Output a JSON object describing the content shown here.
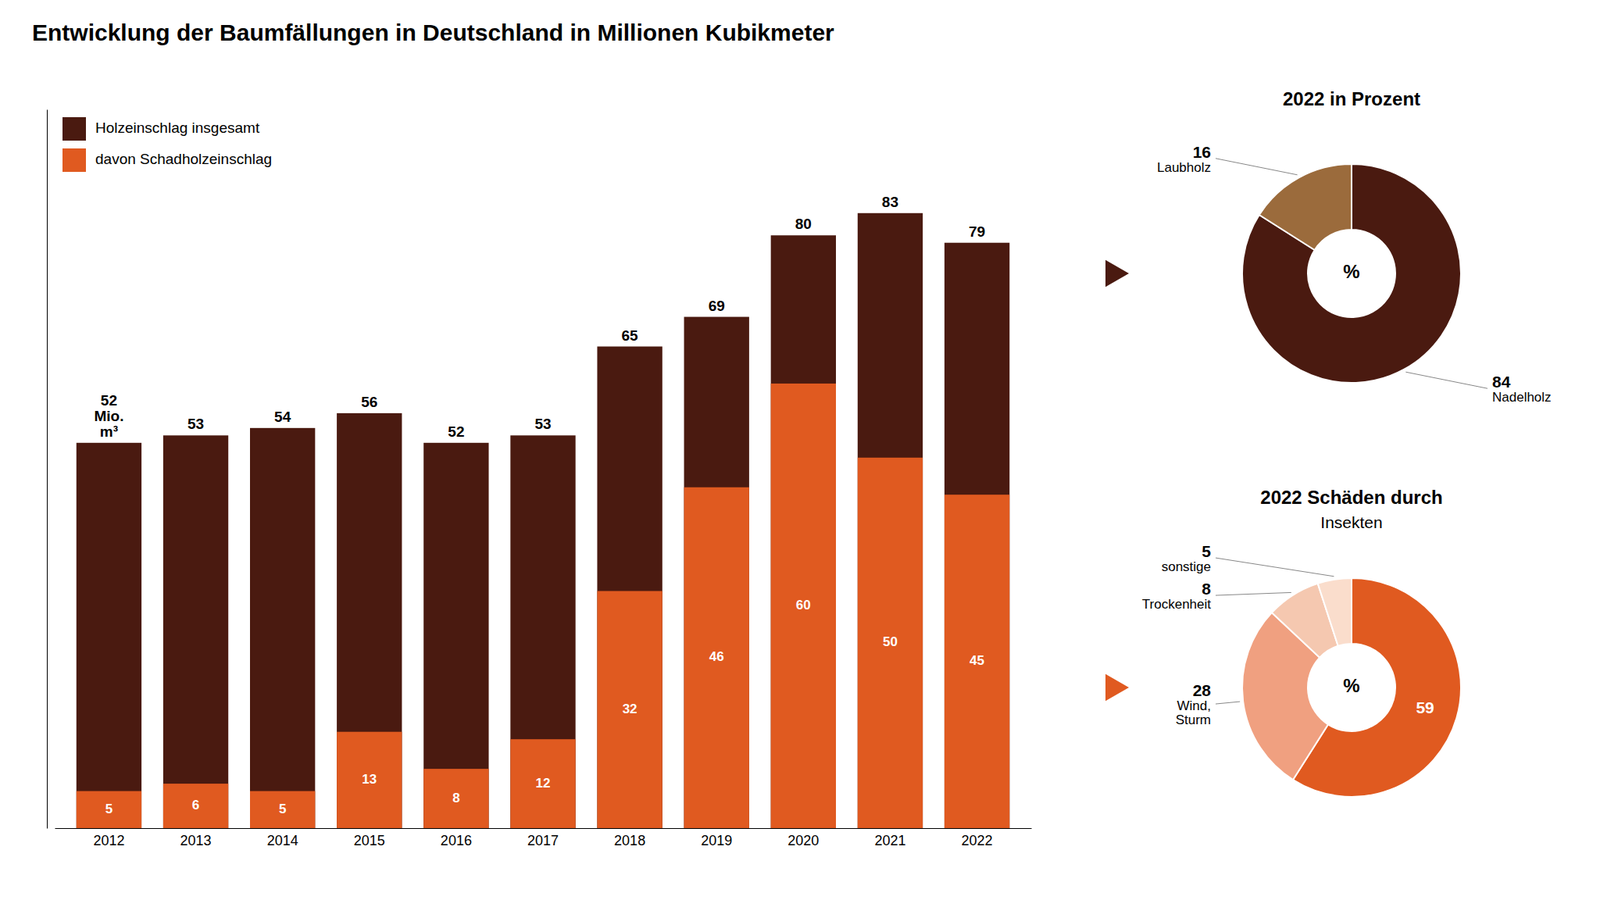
{
  "chart_data": [
    {
      "type": "bar",
      "title": "Entwicklung der Baumfällungen in Deutschland in Millionen Kubikmeter",
      "categories": [
        "2012",
        "2013",
        "2014",
        "2015",
        "2016",
        "2017",
        "2018",
        "2019",
        "2020",
        "2021",
        "2022"
      ],
      "series": [
        {
          "name": "Holzeinschlag insgesamt",
          "color": "#4a1a10",
          "values": [
            52,
            53,
            54,
            56,
            52,
            53,
            65,
            69,
            80,
            83,
            79
          ],
          "value_labels": [
            "52\nMio.\nm³",
            "53",
            "54",
            "56",
            "52",
            "53",
            "65",
            "69",
            "80",
            "83",
            "79"
          ]
        },
        {
          "name": "davon Schadholzeinschlag",
          "color": "#e05a20",
          "values": [
            5,
            6,
            5,
            13,
            8,
            12,
            32,
            46,
            60,
            50,
            45
          ]
        }
      ],
      "ylim": [
        0,
        97
      ],
      "stacked": false,
      "data_labels": true,
      "legend": "upper left",
      "grid": false,
      "tick_labels": "x"
    },
    {
      "type": "pie",
      "title": "2022 in Prozent",
      "categories": [
        "Nadelholz",
        "Laubholz"
      ],
      "values": [
        84,
        16
      ],
      "colors": [
        "#4a1a10",
        "#9B6B3C"
      ],
      "data_labels": true,
      "annotations": [
        "%"
      ]
    },
    {
      "type": "pie",
      "title": "2022 Schäden durch",
      "subtitle": "Insekten",
      "categories": [
        null,
        "Wind,\nSturm",
        "Trockenheit",
        "sonstige"
      ],
      "values": [
        59,
        28,
        8,
        5
      ],
      "colors": [
        "#e05a20",
        "#f0a080",
        "#f5c8b0",
        "#faddcc"
      ],
      "data_labels": true,
      "annotations": [
        "%"
      ]
    }
  ]
}
